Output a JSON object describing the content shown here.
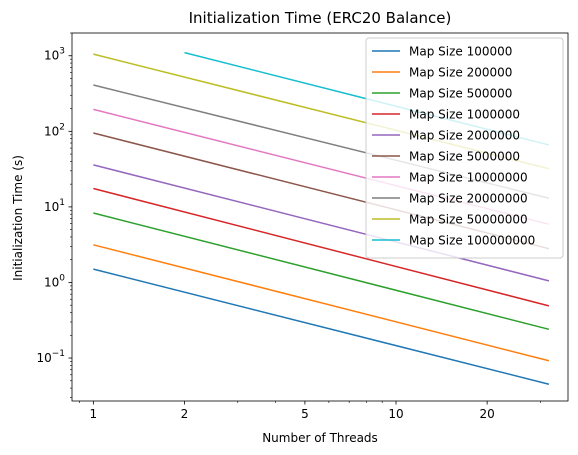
{
  "chart_data": {
    "type": "line",
    "title": "Initialization Time (ERC20 Balance)",
    "xlabel": "Number of Threads",
    "ylabel": "Initialization Time (s)",
    "xscale": "log",
    "yscale": "log",
    "xlim": [
      0.85,
      37
    ],
    "ylim": [
      0.027,
      2000
    ],
    "x_ticks": [
      {
        "value": 1,
        "label": "1"
      },
      {
        "value": 2,
        "label": "2"
      },
      {
        "value": 5,
        "label": "5"
      },
      {
        "value": 10,
        "label": "10"
      },
      {
        "value": 20,
        "label": "20"
      }
    ],
    "y_ticks": [
      {
        "value": 0.1,
        "base": "10",
        "exp": "−1"
      },
      {
        "value": 1,
        "base": "10",
        "exp": "0"
      },
      {
        "value": 10,
        "base": "10",
        "exp": "1"
      },
      {
        "value": 100,
        "base": "10",
        "exp": "2"
      },
      {
        "value": 1000,
        "base": "10",
        "exp": "3"
      }
    ],
    "grid": false,
    "legend_position": "top-right",
    "series": [
      {
        "name": "Map Size 100000",
        "color": "#1f77b4",
        "points": [
          [
            1,
            1.5
          ],
          [
            32,
            0.045
          ]
        ]
      },
      {
        "name": "Map Size 200000",
        "color": "#ff7f0e",
        "points": [
          [
            1,
            3.15
          ],
          [
            32,
            0.092
          ]
        ]
      },
      {
        "name": "Map Size 500000",
        "color": "#2ca02c",
        "points": [
          [
            1,
            8.3
          ],
          [
            32,
            0.24
          ]
        ]
      },
      {
        "name": "Map Size 1000000",
        "color": "#d62728",
        "points": [
          [
            1,
            17.5
          ],
          [
            32,
            0.49
          ]
        ]
      },
      {
        "name": "Map Size 2000000",
        "color": "#9467bd",
        "points": [
          [
            1,
            36
          ],
          [
            32,
            1.05
          ]
        ]
      },
      {
        "name": "Map Size 5000000",
        "color": "#8c564b",
        "points": [
          [
            1,
            95
          ],
          [
            32,
            2.8
          ]
        ]
      },
      {
        "name": "Map Size 10000000",
        "color": "#e377c2",
        "points": [
          [
            1,
            195
          ],
          [
            32,
            5.9
          ]
        ]
      },
      {
        "name": "Map Size 20000000",
        "color": "#7f7f7f",
        "points": [
          [
            1,
            410
          ],
          [
            32,
            13
          ]
        ]
      },
      {
        "name": "Map Size 50000000",
        "color": "#bcbd22",
        "points": [
          [
            1,
            1050
          ],
          [
            32,
            32
          ]
        ]
      },
      {
        "name": "Map Size 100000000",
        "color": "#17becf",
        "points": [
          [
            2,
            1100
          ],
          [
            32,
            66
          ]
        ]
      }
    ]
  }
}
